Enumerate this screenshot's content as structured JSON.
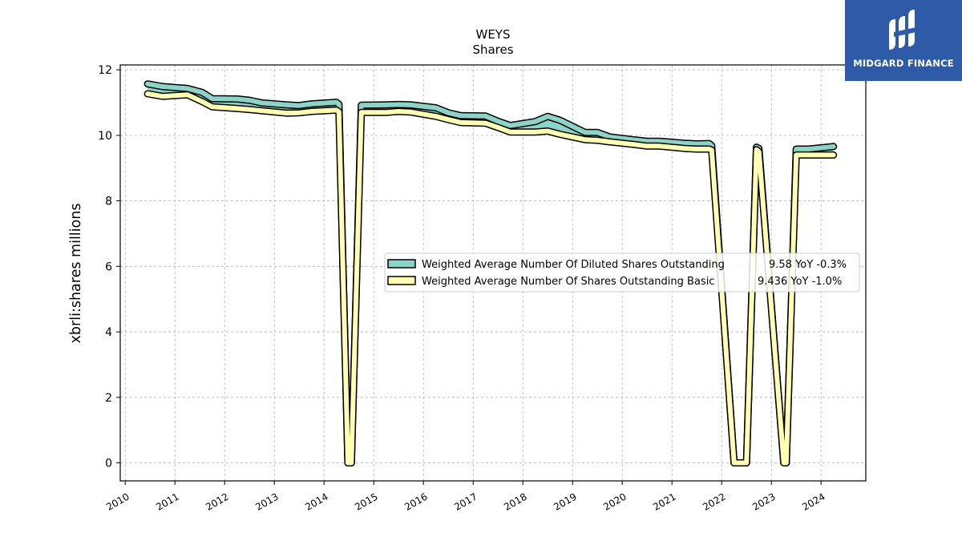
{
  "brand": {
    "name": "MIDGARD FINANCE",
    "logo_icon": "midgard-monogram-icon",
    "background": "#2f5aa8"
  },
  "chart_data": {
    "type": "line",
    "title": "WEYS",
    "subtitle": "Shares",
    "xlabel": "",
    "ylabel": "xbrli:shares millions",
    "xlim": [
      2009.9,
      2024.9
    ],
    "ylim": [
      -0.55,
      12.15
    ],
    "y_ticks": [
      0,
      2,
      4,
      6,
      8,
      10,
      12
    ],
    "x_ticks": [
      "2010",
      "2011",
      "2012",
      "2013",
      "2014",
      "2015",
      "2016",
      "2017",
      "2018",
      "2019",
      "2020",
      "2021",
      "2022",
      "2023",
      "2024"
    ],
    "grid": true,
    "legend_position": "center-right",
    "series": [
      {
        "name": "Weighted Average Number Of Diluted Shares Outstanding",
        "legend_value": "9.58 YoY -0.3%",
        "color": "#8dd3c7",
        "x": [
          2010.45,
          2010.75,
          2011.25,
          2011.55,
          2011.75,
          2012.25,
          2012.5,
          2012.75,
          2013.25,
          2013.5,
          2013.75,
          2014.25,
          2014.3,
          2014.48,
          2014.55,
          2014.75,
          2015.25,
          2015.5,
          2015.75,
          2016.25,
          2016.5,
          2016.75,
          2017.25,
          2017.5,
          2017.75,
          2018.25,
          2018.5,
          2018.75,
          2019.25,
          2019.5,
          2019.75,
          2020.25,
          2020.5,
          2020.75,
          2021.25,
          2021.5,
          2021.75,
          2021.8,
          2022.25,
          2022.4,
          2022.5,
          2022.7,
          2022.75,
          2023.25,
          2023.3,
          2023.5,
          2023.75,
          2024.25
        ],
        "values": [
          11.57,
          11.49,
          11.43,
          11.31,
          11.12,
          11.11,
          11.07,
          10.99,
          10.93,
          10.91,
          10.96,
          11.01,
          10.95,
          0.0,
          0.0,
          10.92,
          10.93,
          10.94,
          10.93,
          10.84,
          10.69,
          10.6,
          10.59,
          10.43,
          10.3,
          10.42,
          10.58,
          10.46,
          10.09,
          10.09,
          9.95,
          9.86,
          9.82,
          9.82,
          9.76,
          9.74,
          9.75,
          9.68,
          0.0,
          0.0,
          0.0,
          9.64,
          9.6,
          0.0,
          0.0,
          9.58,
          9.58,
          9.66
        ]
      },
      {
        "name": "Weighted Average Number Of Shares Outstanding Basic",
        "legend_value": "9.436 YoY -1.0%",
        "color": "#ffffb3",
        "x": [
          2010.45,
          2010.75,
          2011.25,
          2011.55,
          2011.75,
          2012.25,
          2012.5,
          2012.75,
          2013.25,
          2013.5,
          2013.75,
          2014.25,
          2014.3,
          2014.48,
          2014.55,
          2014.75,
          2015.25,
          2015.5,
          2015.75,
          2016.25,
          2016.5,
          2016.75,
          2017.25,
          2017.5,
          2017.75,
          2018.25,
          2018.5,
          2018.75,
          2019.25,
          2019.5,
          2019.75,
          2020.25,
          2020.5,
          2020.75,
          2021.25,
          2021.5,
          2021.75,
          2021.8,
          2022.25,
          2022.4,
          2022.5,
          2022.7,
          2022.75,
          2023.25,
          2023.3,
          2023.5,
          2023.75,
          2024.25
        ],
        "values": [
          11.27,
          11.19,
          11.24,
          11.03,
          10.87,
          10.82,
          10.79,
          10.75,
          10.68,
          10.69,
          10.73,
          10.77,
          10.72,
          0.0,
          0.0,
          10.7,
          10.7,
          10.73,
          10.71,
          10.58,
          10.48,
          10.39,
          10.37,
          10.24,
          10.1,
          10.1,
          10.13,
          10.03,
          9.87,
          9.85,
          9.8,
          9.72,
          9.67,
          9.67,
          9.6,
          9.58,
          9.58,
          9.55,
          0.0,
          0.0,
          0.0,
          9.56,
          9.5,
          0.0,
          0.0,
          9.4,
          9.4,
          9.4
        ]
      }
    ]
  }
}
